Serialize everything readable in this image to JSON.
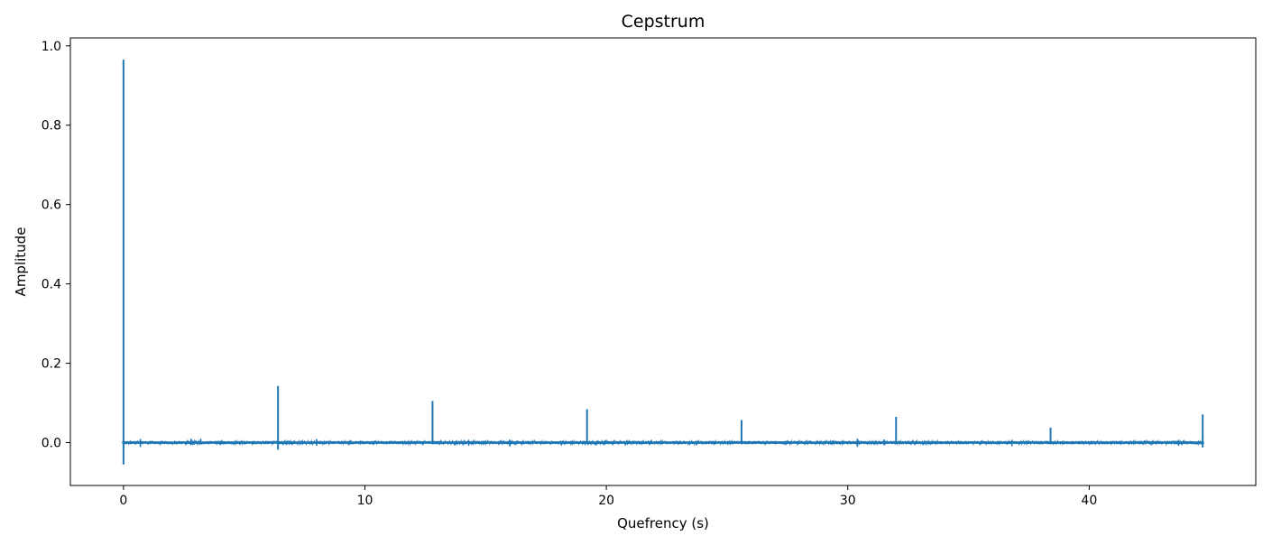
{
  "chart_data": {
    "type": "line",
    "title": "Cepstrum",
    "xlabel": "Quefrency (s)",
    "ylabel": "Amplitude",
    "xlim": [
      -2.2,
      46.9
    ],
    "ylim": [
      -0.108,
      1.02
    ],
    "xticks": [
      0,
      10,
      20,
      30,
      40
    ],
    "xtick_labels": [
      "0",
      "10",
      "20",
      "30",
      "40"
    ],
    "yticks": [
      0.0,
      0.2,
      0.4,
      0.6,
      0.8,
      1.0
    ],
    "ytick_labels": [
      "0.0",
      "0.2",
      "0.4",
      "0.6",
      "0.8",
      "1.0"
    ],
    "grid": false,
    "legend": "none",
    "series": [
      {
        "color": "#1f77b4",
        "x_range": [
          0,
          44.7
        ],
        "baseline": 0.0,
        "noise_amplitude": 0.004,
        "spikes": [
          {
            "x": 0.0,
            "max": 0.965,
            "min": -0.055
          },
          {
            "x": 6.4,
            "max": 0.143,
            "min": -0.018
          },
          {
            "x": 12.8,
            "max": 0.105,
            "min": -0.004
          },
          {
            "x": 19.2,
            "max": 0.084,
            "min": -0.004
          },
          {
            "x": 25.6,
            "max": 0.057,
            "min": -0.004
          },
          {
            "x": 32.0,
            "max": 0.065,
            "min": -0.004
          },
          {
            "x": 38.4,
            "max": 0.038,
            "min": -0.003
          },
          {
            "x": 44.7,
            "max": 0.071,
            "min": -0.012
          }
        ],
        "minor_peaks": [
          {
            "x": 0.7,
            "max": 0.009,
            "min": -0.011
          },
          {
            "x": 2.8,
            "max": 0.01,
            "min": -0.006
          },
          {
            "x": 3.2,
            "max": 0.01,
            "min": -0.005
          },
          {
            "x": 8.0,
            "max": 0.009,
            "min": -0.008
          },
          {
            "x": 14.3,
            "max": 0.007,
            "min": -0.008
          },
          {
            "x": 16.0,
            "max": 0.007,
            "min": -0.01
          },
          {
            "x": 30.4,
            "max": 0.01,
            "min": -0.011
          },
          {
            "x": 31.5,
            "max": 0.008,
            "min": -0.007
          },
          {
            "x": 36.8,
            "max": 0.007,
            "min": -0.009
          },
          {
            "x": 43.7,
            "max": 0.007,
            "min": -0.008
          }
        ]
      }
    ]
  }
}
